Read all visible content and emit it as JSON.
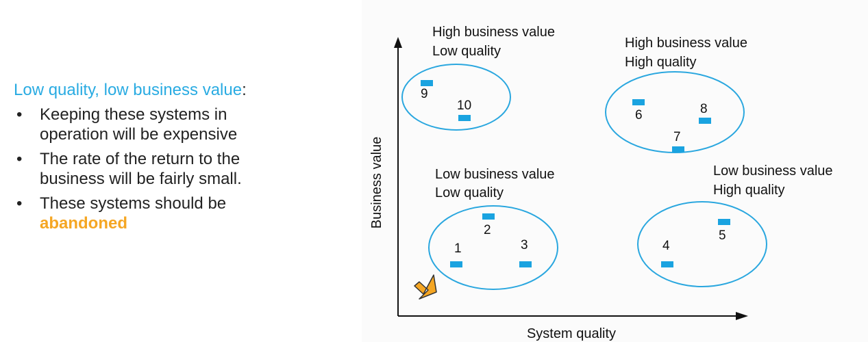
{
  "slide": {
    "heading": {
      "accent": "Low quality, low business value",
      "suffix": ":"
    },
    "points": [
      "Keeping these systems in operation will be expensive",
      "The rate of the return to the business will be fairly small.",
      "These systems should be "
    ],
    "emphasis": "abandoned"
  },
  "diagram": {
    "y_axis_label": "Business value",
    "x_axis_label": "System quality",
    "quadrants": {
      "hvlq": {
        "line1": "High business value",
        "line2": "Low quality"
      },
      "hvhq": {
        "line1": "High business value",
        "line2": "High quality"
      },
      "lvlq": {
        "line1": "Low business value",
        "line2": "Low quality"
      },
      "lvhq": {
        "line1": "Low business value",
        "line2": "High quality"
      }
    },
    "systems": [
      "9",
      "10",
      "6",
      "8",
      "7",
      "2",
      "1",
      "3",
      "4",
      "5"
    ]
  },
  "colors": {
    "accent": "#29abe2",
    "marker": "#1aa3e0",
    "ellipse": "#2aa7df",
    "arrow": "#f5a623"
  }
}
